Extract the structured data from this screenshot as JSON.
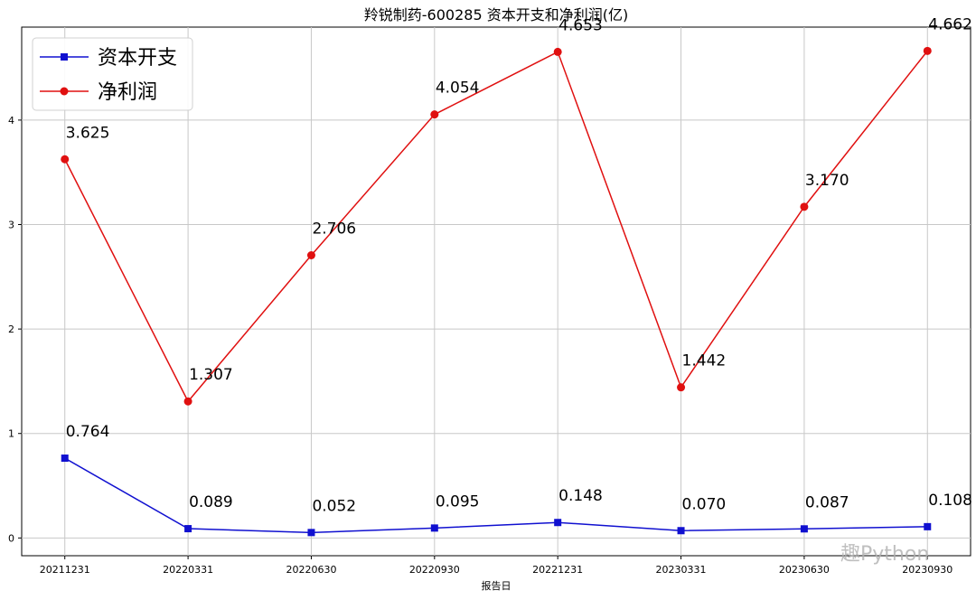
{
  "chart_data": {
    "type": "line",
    "title": "羚锐制药-600285 资本开支和净利润(亿)",
    "x_label": "报告日",
    "categories": [
      "20211231",
      "20220331",
      "20220630",
      "20220930",
      "20221231",
      "20230331",
      "20230630",
      "20230930"
    ],
    "series": [
      {
        "name": "资本开支",
        "color": "#1010d0",
        "marker": "square",
        "values": [
          0.764,
          0.089,
          0.052,
          0.095,
          0.148,
          0.07,
          0.087,
          0.108
        ],
        "value_labels": [
          "0.764",
          "0.089",
          "0.052",
          "0.095",
          "0.148",
          "0.070",
          "0.087",
          "0.108"
        ]
      },
      {
        "name": "净利润",
        "color": "#e01010",
        "marker": "circle",
        "values": [
          3.625,
          1.307,
          2.706,
          4.054,
          4.653,
          1.442,
          3.17,
          4.662
        ],
        "value_labels": [
          "3.625",
          "1.307",
          "2.706",
          "4.054",
          "4.653",
          "1.442",
          "3.170",
          "4.662"
        ]
      }
    ],
    "ylim": [
      -0.17,
      4.89
    ],
    "yticks": [
      0,
      1,
      2,
      3,
      4
    ],
    "grid": true,
    "legend": "upper left",
    "watermark": "趣Python"
  }
}
